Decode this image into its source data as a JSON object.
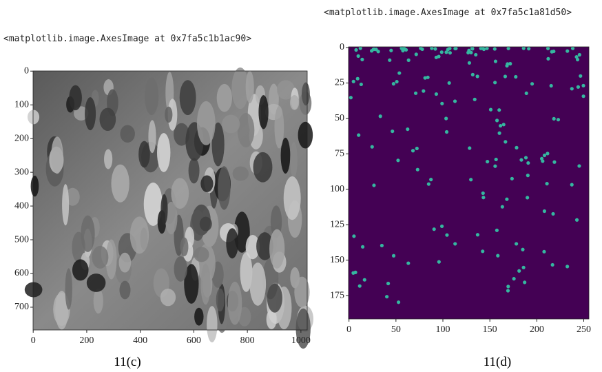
{
  "panels": [
    {
      "repr": "<matplotlib.image.AxesImage at 0x7fa5c1b1ac90>",
      "xlim": [
        -0.5,
        1023.5
      ],
      "ylim": [
        767.5,
        -0.5
      ],
      "xticks": [
        0,
        200,
        400,
        600,
        800,
        1000
      ],
      "yticks": [
        0,
        100,
        200,
        300,
        400,
        500,
        600,
        700
      ],
      "caption": "11(c)"
    },
    {
      "repr": "<matplotlib.image.AxesImage at 0x7fa5c1a81d50>",
      "xlim": [
        -0.5,
        255.5
      ],
      "ylim": [
        191.5,
        -0.5
      ],
      "xticks": [
        0,
        50,
        100,
        150,
        200,
        250
      ],
      "yticks": [
        0,
        25,
        50,
        75,
        100,
        125,
        150,
        175
      ],
      "caption": "11(d)"
    }
  ]
}
